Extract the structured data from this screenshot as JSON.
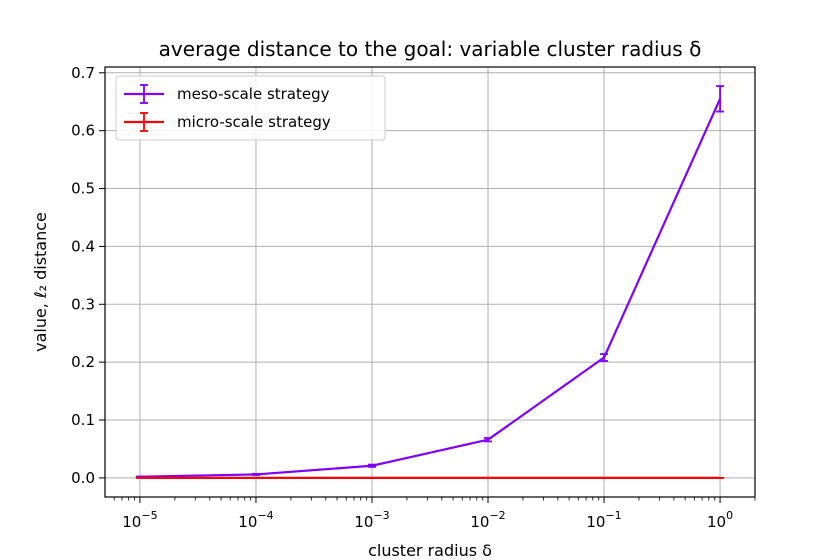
{
  "chart_data": {
    "type": "line",
    "title": "average distance to the goal: variable cluster radius δ",
    "xlabel": "cluster radius δ",
    "ylabel": "value, ℓ₂ distance",
    "xscale": "log",
    "x": [
      1e-05,
      0.0001,
      0.001,
      0.01,
      0.1,
      1
    ],
    "xlim": [
      5e-06,
      2
    ],
    "ylim": [
      -0.033,
      0.71
    ],
    "grid": true,
    "legend_position": "top-left",
    "x_ticks": [
      {
        "base": "10",
        "exp": "−5",
        "value": 1e-05
      },
      {
        "base": "10",
        "exp": "−4",
        "value": 0.0001
      },
      {
        "base": "10",
        "exp": "−3",
        "value": 0.001
      },
      {
        "base": "10",
        "exp": "−2",
        "value": 0.01
      },
      {
        "base": "10",
        "exp": "−1",
        "value": 0.1
      },
      {
        "base": "10",
        "exp": "0",
        "value": 1
      }
    ],
    "y_ticks": [
      "0.0",
      "0.1",
      "0.2",
      "0.3",
      "0.4",
      "0.5",
      "0.6",
      "0.7"
    ],
    "series": [
      {
        "name": "meso-scale strategy",
        "color": "#7f00ff",
        "values": [
          0.002,
          0.006,
          0.021,
          0.066,
          0.208,
          0.655
        ],
        "errors": [
          0.0005,
          0.001,
          0.002,
          0.003,
          0.006,
          0.022
        ]
      },
      {
        "name": "micro-scale strategy",
        "color": "#ff0000",
        "values": [
          0.0,
          0.0,
          0.0,
          0.0,
          0.0,
          0.0
        ],
        "errors": [
          0.0,
          0.0,
          0.0,
          0.0,
          0.0,
          0.0
        ]
      }
    ]
  }
}
